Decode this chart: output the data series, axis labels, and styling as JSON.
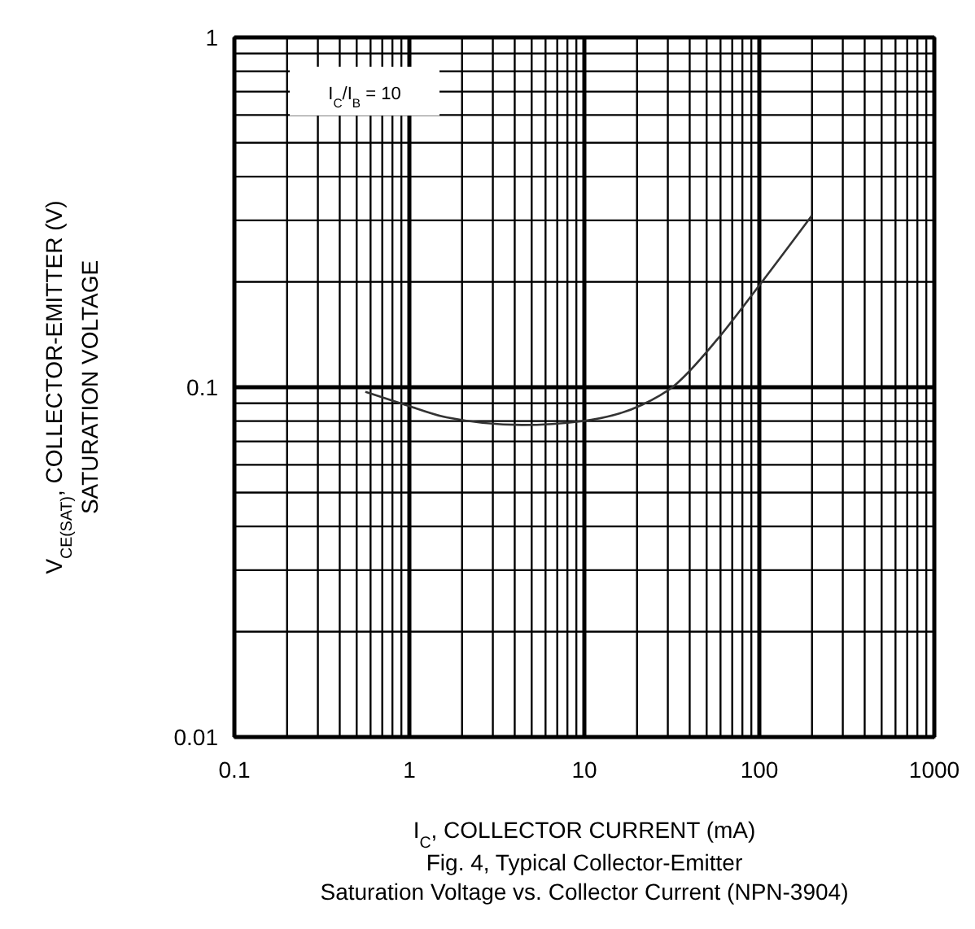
{
  "chart_data": {
    "type": "line",
    "title": "Fig. 4, Typical Collector-Emitter\nSaturation Voltage vs. Collector Current (NPN-3904)",
    "xlabel": "I$_{C}$, COLLECTOR CURRENT (mA)",
    "ylabel": "V$_{CE(SAT)}$, COLLECTOR-EMITTER (V)\nSATURATION VOLTAGE",
    "annotations": [
      "I$_{C}$/I$_{B}$ = 10"
    ],
    "log": "xy",
    "grid": true,
    "marker": "none",
    "line_style": "solid",
    "xlim": [
      0.1,
      1000
    ],
    "xticks": [
      0.1,
      1,
      10,
      100,
      1000
    ],
    "ylim": [
      0.01,
      1
    ],
    "yticks": [
      0.01,
      0.1,
      1
    ],
    "series": [
      {
        "color": "#333333",
        "x": [
          0.56,
          0.92,
          1.63,
          4.4,
          9.7,
          21.3,
          32.6,
          57.5,
          98,
          200
        ],
        "values": [
          0.097,
          0.0895,
          0.082,
          0.078,
          0.08,
          0.089,
          0.101,
          0.137,
          0.193,
          0.31
        ]
      }
    ]
  }
}
